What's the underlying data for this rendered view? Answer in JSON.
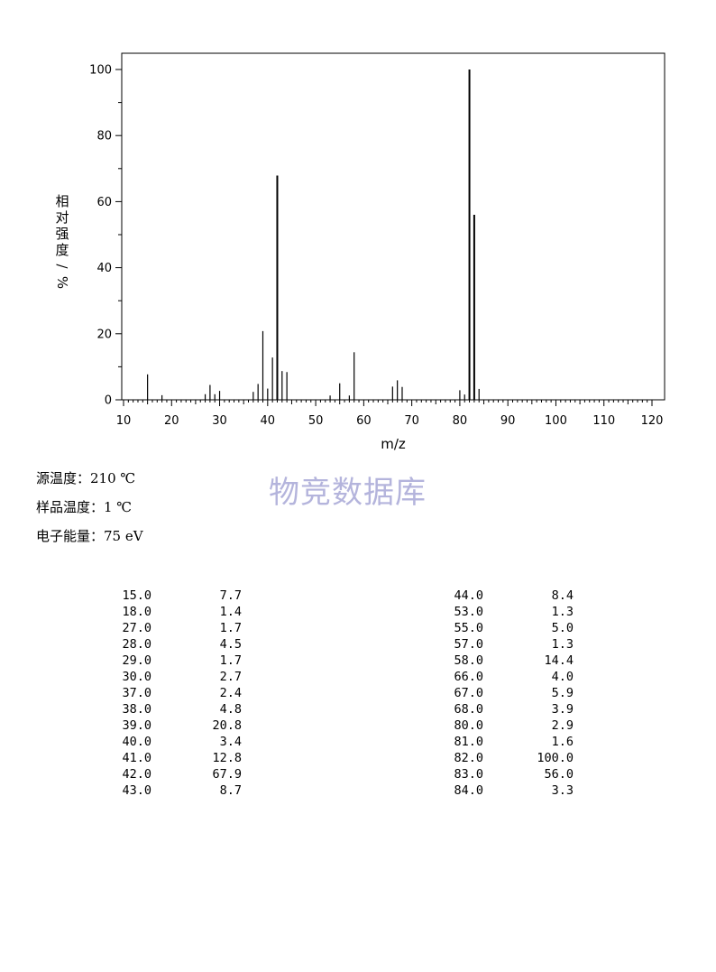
{
  "chart_data": {
    "type": "bar",
    "xlabel": "m/z",
    "ylabel": "相对强度/%",
    "xlim": [
      10,
      122
    ],
    "ylim": [
      0,
      100
    ],
    "x_ticks": [
      "10",
      "20",
      "30",
      "40",
      "50",
      "60",
      "70",
      "80",
      "90",
      "100",
      "110",
      "120"
    ],
    "y_ticks": [
      "0",
      "20",
      "40",
      "60",
      "80",
      "100"
    ],
    "x": [
      15,
      18,
      27,
      28,
      29,
      30,
      37,
      38,
      39,
      40,
      41,
      42,
      43,
      44,
      53,
      55,
      57,
      58,
      66,
      67,
      68,
      80,
      81,
      82,
      83,
      84
    ],
    "values": [
      7.7,
      1.4,
      1.7,
      4.5,
      1.7,
      2.7,
      2.4,
      4.8,
      20.8,
      3.4,
      12.8,
      67.9,
      8.7,
      8.4,
      1.3,
      5.0,
      1.3,
      14.4,
      4.0,
      5.9,
      3.9,
      2.9,
      1.6,
      100.0,
      56.0,
      3.3
    ]
  },
  "conditions": {
    "source_temp": "源温度：210 ℃",
    "sample_temp": "样品温度：1 ℃",
    "electron_energy": "电子能量：75 eV"
  },
  "watermark": "物竞数据库",
  "peak_table": {
    "left": [
      {
        "mz": "15.0",
        "intensity": "7.7"
      },
      {
        "mz": "18.0",
        "intensity": "1.4"
      },
      {
        "mz": "27.0",
        "intensity": "1.7"
      },
      {
        "mz": "28.0",
        "intensity": "4.5"
      },
      {
        "mz": "29.0",
        "intensity": "1.7"
      },
      {
        "mz": "30.0",
        "intensity": "2.7"
      },
      {
        "mz": "37.0",
        "intensity": "2.4"
      },
      {
        "mz": "38.0",
        "intensity": "4.8"
      },
      {
        "mz": "39.0",
        "intensity": "20.8"
      },
      {
        "mz": "40.0",
        "intensity": "3.4"
      },
      {
        "mz": "41.0",
        "intensity": "12.8"
      },
      {
        "mz": "42.0",
        "intensity": "67.9"
      },
      {
        "mz": "43.0",
        "intensity": "8.7"
      }
    ],
    "right": [
      {
        "mz": "44.0",
        "intensity": "8.4"
      },
      {
        "mz": "53.0",
        "intensity": "1.3"
      },
      {
        "mz": "55.0",
        "intensity": "5.0"
      },
      {
        "mz": "57.0",
        "intensity": "1.3"
      },
      {
        "mz": "58.0",
        "intensity": "14.4"
      },
      {
        "mz": "66.0",
        "intensity": "4.0"
      },
      {
        "mz": "67.0",
        "intensity": "5.9"
      },
      {
        "mz": "68.0",
        "intensity": "3.9"
      },
      {
        "mz": "80.0",
        "intensity": "2.9"
      },
      {
        "mz": "81.0",
        "intensity": "1.6"
      },
      {
        "mz": "82.0",
        "intensity": "100.0"
      },
      {
        "mz": "83.0",
        "intensity": "56.0"
      },
      {
        "mz": "84.0",
        "intensity": "3.3"
      }
    ]
  }
}
